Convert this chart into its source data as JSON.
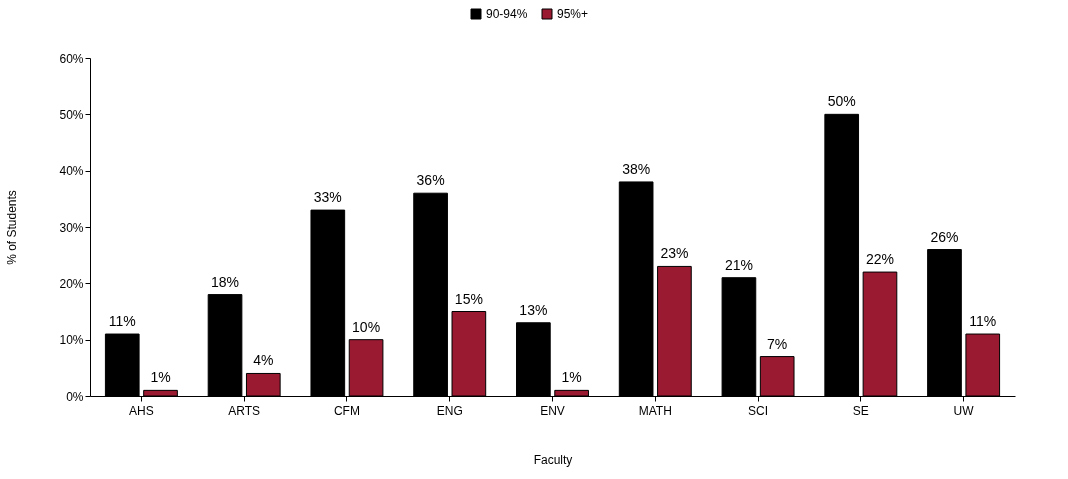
{
  "chart_data": {
    "type": "bar",
    "categories": [
      "AHS",
      "ARTS",
      "CFM",
      "ENG",
      "ENV",
      "MATH",
      "SCI",
      "SE",
      "UW"
    ],
    "series": [
      {
        "name": "90-94%",
        "color": "#000000",
        "values": [
          11,
          18,
          33,
          36,
          13,
          38,
          21,
          50,
          26
        ],
        "value_labels": [
          "11%",
          "18%",
          "33%",
          "36%",
          "13%",
          "38%",
          "21%",
          "50%",
          "26%"
        ]
      },
      {
        "name": "95%+",
        "color": "#991a31",
        "values": [
          1,
          4,
          10,
          15,
          1,
          23,
          7,
          22,
          11
        ],
        "value_labels": [
          "1%",
          "4%",
          "10%",
          "15%",
          "1%",
          "23%",
          "7%",
          "22%",
          "11%"
        ]
      }
    ],
    "xlabel": "Faculty",
    "ylabel": "% of Students",
    "ylim": [
      0,
      60
    ],
    "yticks": [
      {
        "value": 0,
        "label": "0%"
      },
      {
        "value": 10,
        "label": "10%"
      },
      {
        "value": 20,
        "label": "20%"
      },
      {
        "value": 30,
        "label": "30%"
      },
      {
        "value": 40,
        "label": "40%"
      },
      {
        "value": 50,
        "label": "50%"
      },
      {
        "value": 60,
        "label": "60%"
      }
    ],
    "grid": false,
    "legend": "top"
  }
}
